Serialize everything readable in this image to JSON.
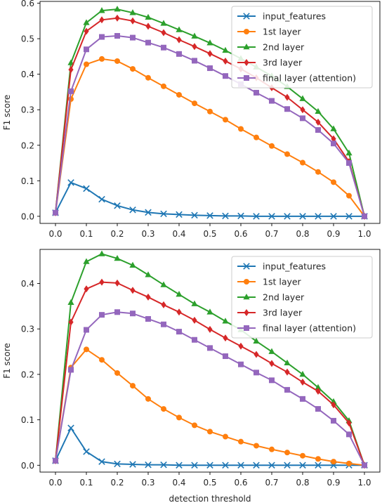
{
  "chart_data": [
    {
      "type": "line",
      "xlabel": "",
      "ylabel": "F1 score",
      "xlim": [
        -0.05,
        1.05
      ],
      "ylim": [
        -0.02,
        0.605
      ],
      "xticks": [
        "0.0",
        "0.1",
        "0.2",
        "0.3",
        "0.4",
        "0.5",
        "0.6",
        "0.7",
        "0.8",
        "0.9",
        "1.0"
      ],
      "yticks": [
        "0.0",
        "0.1",
        "0.2",
        "0.3",
        "0.4",
        "0.5",
        "0.6"
      ],
      "legend": "top-right",
      "x": [
        0.0,
        0.05,
        0.1,
        0.15,
        0.2,
        0.25,
        0.3,
        0.35,
        0.4,
        0.45,
        0.5,
        0.55,
        0.6,
        0.65,
        0.7,
        0.75,
        0.8,
        0.85,
        0.9,
        0.95,
        1.0
      ],
      "series": [
        {
          "name": "input_features",
          "color": "#1f77b4",
          "marker": "x",
          "values": [
            0.01,
            0.095,
            0.078,
            0.048,
            0.03,
            0.018,
            0.011,
            0.007,
            0.005,
            0.003,
            0.002,
            0.001,
            0.001,
            0.0,
            0.0,
            0.0,
            0.0,
            0.0,
            0.0,
            0.0,
            0.0
          ]
        },
        {
          "name": "1st layer",
          "color": "#ff7f0e",
          "marker": "circle",
          "values": [
            0.01,
            0.33,
            0.428,
            0.443,
            0.437,
            0.415,
            0.39,
            0.366,
            0.342,
            0.318,
            0.295,
            0.272,
            0.246,
            0.222,
            0.198,
            0.175,
            0.151,
            0.125,
            0.096,
            0.058,
            0.0
          ]
        },
        {
          "name": "2nd layer",
          "color": "#2ca02c",
          "marker": "triangle",
          "values": [
            0.01,
            0.432,
            0.545,
            0.579,
            0.583,
            0.573,
            0.56,
            0.543,
            0.525,
            0.507,
            0.488,
            0.467,
            0.444,
            0.42,
            0.395,
            0.365,
            0.331,
            0.295,
            0.246,
            0.178,
            0.0
          ]
        },
        {
          "name": "3rd layer",
          "color": "#d62728",
          "marker": "diamond",
          "values": [
            0.01,
            0.413,
            0.521,
            0.553,
            0.558,
            0.55,
            0.535,
            0.517,
            0.497,
            0.478,
            0.458,
            0.437,
            0.415,
            0.39,
            0.362,
            0.335,
            0.3,
            0.265,
            0.218,
            0.154,
            0.0
          ]
        },
        {
          "name": "final layer (attention)",
          "color": "#9467bd",
          "marker": "square",
          "values": [
            0.01,
            0.352,
            0.47,
            0.505,
            0.508,
            0.503,
            0.489,
            0.475,
            0.457,
            0.438,
            0.417,
            0.395,
            0.372,
            0.348,
            0.325,
            0.302,
            0.276,
            0.243,
            0.205,
            0.15,
            0.0
          ]
        }
      ]
    },
    {
      "type": "line",
      "xlabel": "detection threshold",
      "ylabel": "F1 score",
      "xlim": [
        -0.05,
        1.05
      ],
      "ylim": [
        -0.015,
        0.475
      ],
      "xticks": [
        "0.0",
        "0.1",
        "0.2",
        "0.3",
        "0.4",
        "0.5",
        "0.6",
        "0.7",
        "0.8",
        "0.9",
        "1.0"
      ],
      "yticks": [
        "0.0",
        "0.1",
        "0.2",
        "0.3",
        "0.4"
      ],
      "legend": "top-right",
      "x": [
        0.0,
        0.05,
        0.1,
        0.15,
        0.2,
        0.25,
        0.3,
        0.35,
        0.4,
        0.45,
        0.5,
        0.55,
        0.6,
        0.65,
        0.7,
        0.75,
        0.8,
        0.85,
        0.9,
        0.95,
        1.0
      ],
      "series": [
        {
          "name": "input_features",
          "color": "#1f77b4",
          "marker": "x",
          "values": [
            0.01,
            0.082,
            0.03,
            0.008,
            0.003,
            0.002,
            0.001,
            0.001,
            0.0,
            0.0,
            0.0,
            0.0,
            0.0,
            0.0,
            0.0,
            0.0,
            0.0,
            0.0,
            0.0,
            0.0,
            0.0
          ]
        },
        {
          "name": "1st layer",
          "color": "#ff7f0e",
          "marker": "circle",
          "values": [
            0.01,
            0.215,
            0.255,
            0.232,
            0.203,
            0.175,
            0.146,
            0.124,
            0.105,
            0.088,
            0.074,
            0.063,
            0.052,
            0.043,
            0.035,
            0.028,
            0.021,
            0.014,
            0.008,
            0.004,
            0.0
          ]
        },
        {
          "name": "2nd layer",
          "color": "#2ca02c",
          "marker": "triangle",
          "values": [
            0.01,
            0.358,
            0.448,
            0.465,
            0.455,
            0.44,
            0.419,
            0.397,
            0.376,
            0.355,
            0.337,
            0.317,
            0.298,
            0.273,
            0.25,
            0.225,
            0.2,
            0.171,
            0.14,
            0.098,
            0.0
          ]
        },
        {
          "name": "3rd layer",
          "color": "#d62728",
          "marker": "diamond",
          "values": [
            0.01,
            0.315,
            0.388,
            0.403,
            0.401,
            0.385,
            0.37,
            0.353,
            0.337,
            0.319,
            0.299,
            0.28,
            0.262,
            0.244,
            0.224,
            0.205,
            0.183,
            0.163,
            0.133,
            0.093,
            0.0
          ]
        },
        {
          "name": "final layer (attention)",
          "color": "#9467bd",
          "marker": "square",
          "values": [
            0.01,
            0.21,
            0.298,
            0.331,
            0.337,
            0.334,
            0.322,
            0.31,
            0.294,
            0.276,
            0.258,
            0.24,
            0.222,
            0.204,
            0.187,
            0.166,
            0.146,
            0.124,
            0.098,
            0.068,
            0.0
          ]
        }
      ]
    }
  ]
}
